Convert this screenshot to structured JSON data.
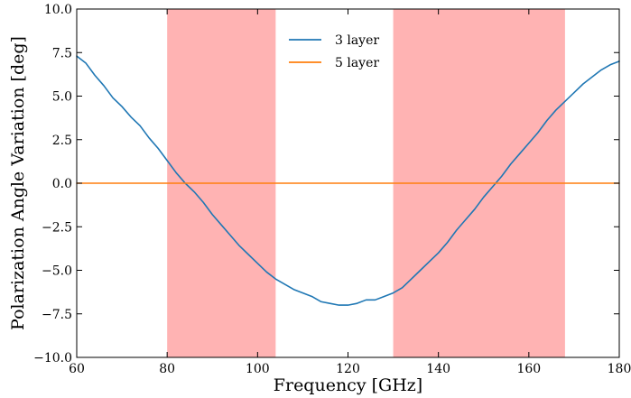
{
  "chart_data": {
    "type": "line",
    "xlabel": "Frequency [GHz]",
    "ylabel": "Polarization Angle Variation [deg]",
    "xlim": [
      60,
      180
    ],
    "ylim": [
      -10,
      10
    ],
    "xticks": [
      60,
      80,
      100,
      120,
      140,
      160,
      180
    ],
    "xtick_labels": [
      "60",
      "80",
      "100",
      "120",
      "140",
      "160",
      "180"
    ],
    "yticks": [
      -10,
      -7.5,
      -5,
      -2.5,
      0,
      2.5,
      5,
      7.5,
      10
    ],
    "ytick_labels": [
      "−10.0",
      "−7.5",
      "−5.0",
      "−2.5",
      "0.0",
      "2.5",
      "5.0",
      "7.5",
      "10.0"
    ],
    "grid": false,
    "legend_position": "top-center",
    "shaded_bands": [
      {
        "x0": 80,
        "x1": 104,
        "color": "#ffb3b3"
      },
      {
        "x0": 130,
        "x1": 168,
        "color": "#ffb3b3"
      }
    ],
    "series": [
      {
        "name": "3 layer",
        "color": "#1f77b4",
        "x": [
          60,
          62,
          64,
          66,
          68,
          70,
          72,
          74,
          76,
          78,
          80,
          82,
          84,
          86,
          88,
          90,
          92,
          94,
          96,
          98,
          100,
          102,
          104,
          106,
          108,
          110,
          112,
          114,
          116,
          118,
          120,
          122,
          124,
          126,
          128,
          130,
          132,
          134,
          136,
          138,
          140,
          142,
          144,
          146,
          148,
          150,
          152,
          154,
          156,
          158,
          160,
          162,
          164,
          166,
          168,
          170,
          172,
          174,
          176,
          178,
          180
        ],
        "y": [
          7.3,
          6.9,
          6.2,
          5.6,
          4.9,
          4.4,
          3.8,
          3.3,
          2.6,
          2.0,
          1.3,
          0.6,
          0.0,
          -0.5,
          -1.1,
          -1.8,
          -2.4,
          -3.0,
          -3.6,
          -4.1,
          -4.6,
          -5.1,
          -5.5,
          -5.8,
          -6.1,
          -6.3,
          -6.5,
          -6.8,
          -6.9,
          -7.0,
          -7.0,
          -6.9,
          -6.7,
          -6.7,
          -6.5,
          -6.3,
          -6.0,
          -5.5,
          -5.0,
          -4.5,
          -4.0,
          -3.4,
          -2.7,
          -2.1,
          -1.5,
          -0.8,
          -0.2,
          0.4,
          1.1,
          1.7,
          2.3,
          2.9,
          3.6,
          4.2,
          4.7,
          5.2,
          5.7,
          6.1,
          6.5,
          6.8,
          7.0
        ]
      },
      {
        "name": "5 layer",
        "color": "#ff7f0e",
        "x": [
          60,
          180
        ],
        "y": [
          0.0,
          0.0
        ]
      }
    ]
  }
}
